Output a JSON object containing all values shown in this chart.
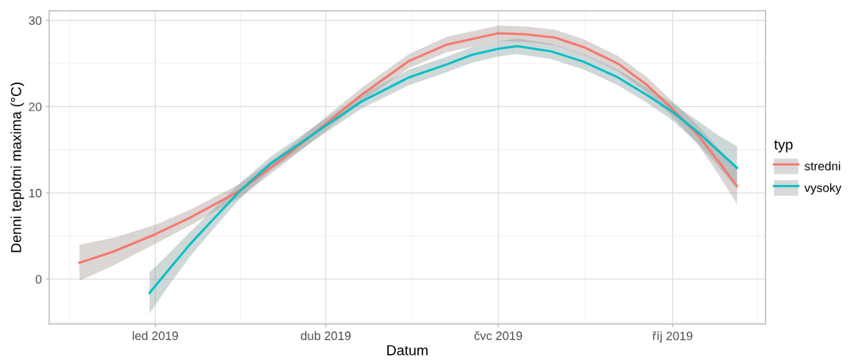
{
  "chart_data": {
    "type": "line",
    "xlabel": "Datum",
    "ylabel": "Denni teplotni maxima (°C)",
    "legend_title": "typ",
    "legend": "right",
    "grid": true,
    "xlim": [
      "2018-11-06",
      "2019-11-19"
    ],
    "ylim": [
      -5.2,
      31.1
    ],
    "xticks": [
      {
        "value": "2019-01-01",
        "label": "led 2019"
      },
      {
        "value": "2019-04-01",
        "label": "dub 2019"
      },
      {
        "value": "2019-07-01",
        "label": "čvc 2019"
      },
      {
        "value": "2019-10-01",
        "label": "říj 2019"
      }
    ],
    "yticks": [
      0,
      10,
      20,
      30
    ],
    "series": [
      {
        "name": "stredni",
        "color": "#f8766d",
        "x": [
          "2018-11-22",
          "2018-12-10",
          "2019-01-01",
          "2019-01-20",
          "2019-02-15",
          "2019-03-10",
          "2019-04-01",
          "2019-04-20",
          "2019-05-15",
          "2019-06-04",
          "2019-07-01",
          "2019-07-15",
          "2019-07-31",
          "2019-08-15",
          "2019-09-02",
          "2019-09-17",
          "2019-10-01",
          "2019-10-14",
          "2019-10-25",
          "2019-11-04"
        ],
        "values": [
          1.9,
          3.2,
          5.2,
          7.2,
          10.3,
          14.1,
          18.0,
          21.4,
          25.3,
          27.2,
          28.5,
          28.4,
          28.0,
          26.9,
          25.0,
          22.6,
          19.7,
          16.8,
          13.7,
          10.8
        ],
        "lower": [
          -0.2,
          1.6,
          4.1,
          6.3,
          9.5,
          13.4,
          17.2,
          20.6,
          24.5,
          26.3,
          27.6,
          27.5,
          27.1,
          26.0,
          24.1,
          21.7,
          18.8,
          15.7,
          12.2,
          8.7
        ],
        "upper": [
          4.0,
          4.8,
          6.3,
          8.1,
          11.1,
          14.8,
          18.8,
          22.2,
          26.1,
          28.1,
          29.4,
          29.3,
          28.9,
          27.8,
          25.9,
          23.5,
          20.6,
          17.9,
          15.2,
          12.9
        ]
      },
      {
        "name": "vysoky",
        "color": "#00bfc4",
        "x": [
          "2018-12-29",
          "2019-01-07",
          "2019-01-20",
          "2019-02-03",
          "2019-02-15",
          "2019-03-03",
          "2019-04-01",
          "2019-04-20",
          "2019-05-15",
          "2019-06-04",
          "2019-06-17",
          "2019-07-01",
          "2019-07-11",
          "2019-07-29",
          "2019-08-15",
          "2019-09-02",
          "2019-09-17",
          "2019-10-01",
          "2019-10-14",
          "2019-10-25",
          "2019-11-04"
        ],
        "values": [
          -1.6,
          0.8,
          4.2,
          7.5,
          10.3,
          13.4,
          17.8,
          20.6,
          23.4,
          24.9,
          26.0,
          26.7,
          27.0,
          26.4,
          25.2,
          23.4,
          21.4,
          19.4,
          17.1,
          14.9,
          12.9
        ],
        "lower": [
          -4.0,
          -1.1,
          2.8,
          6.4,
          9.4,
          12.6,
          17.0,
          19.8,
          22.5,
          24.0,
          25.1,
          25.8,
          26.1,
          25.5,
          24.3,
          22.5,
          20.5,
          18.4,
          15.8,
          13.1,
          10.4
        ],
        "upper": [
          0.8,
          2.7,
          5.6,
          8.6,
          11.2,
          14.2,
          18.6,
          21.4,
          24.3,
          25.8,
          26.9,
          27.6,
          27.9,
          27.3,
          26.1,
          24.3,
          22.3,
          20.4,
          18.4,
          16.7,
          15.4
        ]
      }
    ]
  }
}
